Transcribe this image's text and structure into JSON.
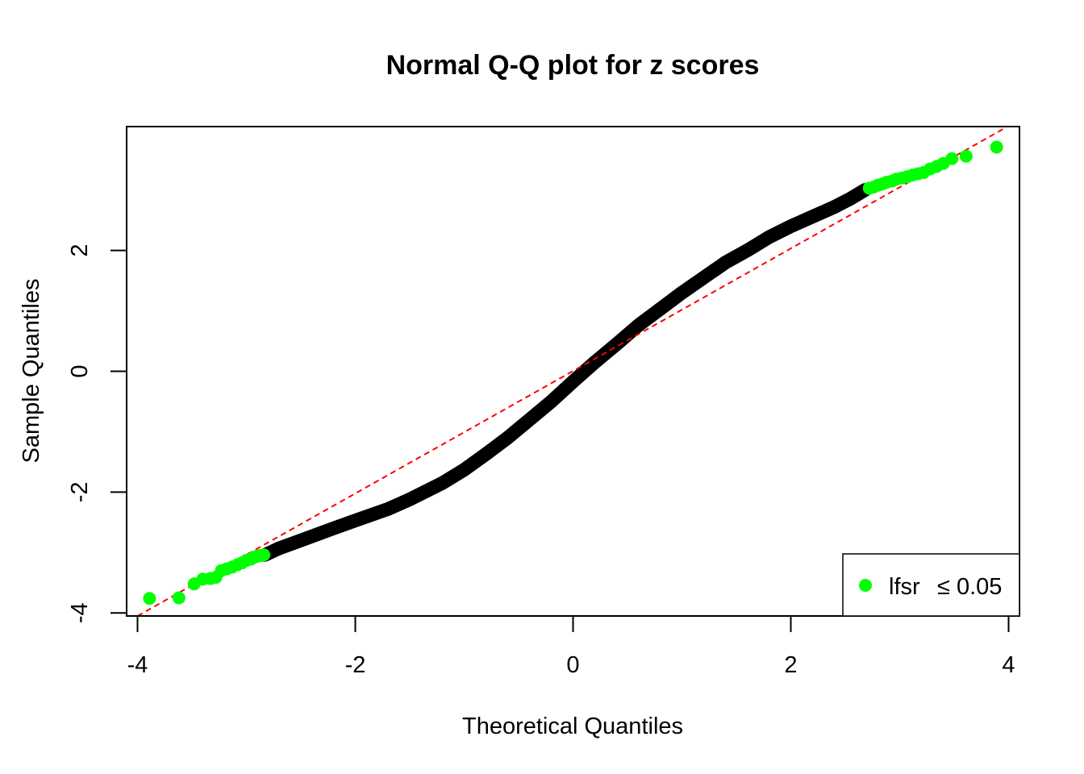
{
  "chart_data": {
    "type": "scatter",
    "title": "Normal Q-Q plot for z scores",
    "xlabel": "Theoretical Quantiles",
    "ylabel": "Sample Quantiles",
    "xlim": [
      -4.1,
      4.1
    ],
    "ylim": [
      -4.05,
      4.05
    ],
    "x_ticks": [
      -4,
      -2,
      0,
      2,
      4
    ],
    "y_ticks": [
      -4,
      -2,
      0,
      2
    ],
    "x_tick_labels": [
      "-4",
      "-2",
      "0",
      "2",
      "4"
    ],
    "y_tick_labels": [
      "-4",
      "-2",
      "0",
      "2"
    ],
    "grid": false,
    "legend": {
      "position": "bottom-right",
      "label_main": "lfsr",
      "label_rel": "≤ 0.05"
    },
    "reference_line": {
      "style": "dashed",
      "color": "#ff0000",
      "points": [
        [
          -4.0,
          -4.05
        ],
        [
          4.0,
          4.06
        ]
      ]
    },
    "series": [
      {
        "color": "#000000",
        "curve": [
          [
            -2.83,
            -3.04
          ],
          [
            -2.7,
            -2.93
          ],
          [
            -2.5,
            -2.8
          ],
          [
            -2.2,
            -2.6
          ],
          [
            -2.0,
            -2.47
          ],
          [
            -1.7,
            -2.28
          ],
          [
            -1.5,
            -2.12
          ],
          [
            -1.2,
            -1.85
          ],
          [
            -1.0,
            -1.63
          ],
          [
            -0.8,
            -1.37
          ],
          [
            -0.6,
            -1.1
          ],
          [
            -0.4,
            -0.8
          ],
          [
            -0.2,
            -0.5
          ],
          [
            0.0,
            -0.17
          ],
          [
            0.2,
            0.15
          ],
          [
            0.4,
            0.45
          ],
          [
            0.6,
            0.76
          ],
          [
            0.8,
            1.03
          ],
          [
            1.0,
            1.3
          ],
          [
            1.2,
            1.55
          ],
          [
            1.4,
            1.8
          ],
          [
            1.6,
            2.0
          ],
          [
            1.8,
            2.22
          ],
          [
            2.0,
            2.4
          ],
          [
            2.2,
            2.56
          ],
          [
            2.4,
            2.72
          ],
          [
            2.55,
            2.86
          ],
          [
            2.68,
            3.0
          ]
        ]
      },
      {
        "name": "lfsr ≤ 0.05",
        "color": "#00ff00",
        "points": [
          [
            -3.89,
            -3.76
          ],
          [
            -3.62,
            -3.75
          ],
          [
            -3.48,
            -3.52
          ],
          [
            -3.4,
            -3.44
          ],
          [
            -3.33,
            -3.43
          ],
          [
            -3.28,
            -3.41
          ],
          [
            -3.23,
            -3.3
          ],
          [
            -3.18,
            -3.27
          ],
          [
            -3.13,
            -3.24
          ],
          [
            -3.08,
            -3.2
          ],
          [
            -3.04,
            -3.17
          ],
          [
            -3.0,
            -3.13
          ],
          [
            -2.96,
            -3.11
          ],
          [
            -2.93,
            -3.08
          ],
          [
            -2.9,
            -3.06
          ],
          [
            -2.87,
            -3.05
          ],
          [
            -2.84,
            -3.04
          ],
          [
            2.72,
            3.03
          ],
          [
            2.76,
            3.05
          ],
          [
            2.8,
            3.08
          ],
          [
            2.84,
            3.1
          ],
          [
            2.88,
            3.13
          ],
          [
            2.93,
            3.15
          ],
          [
            2.97,
            3.18
          ],
          [
            3.02,
            3.2
          ],
          [
            3.07,
            3.22
          ],
          [
            3.12,
            3.25
          ],
          [
            3.17,
            3.27
          ],
          [
            3.22,
            3.29
          ],
          [
            3.28,
            3.35
          ],
          [
            3.34,
            3.39
          ],
          [
            3.4,
            3.44
          ],
          [
            3.48,
            3.52
          ],
          [
            3.61,
            3.56
          ],
          [
            3.89,
            3.71
          ]
        ]
      }
    ]
  }
}
